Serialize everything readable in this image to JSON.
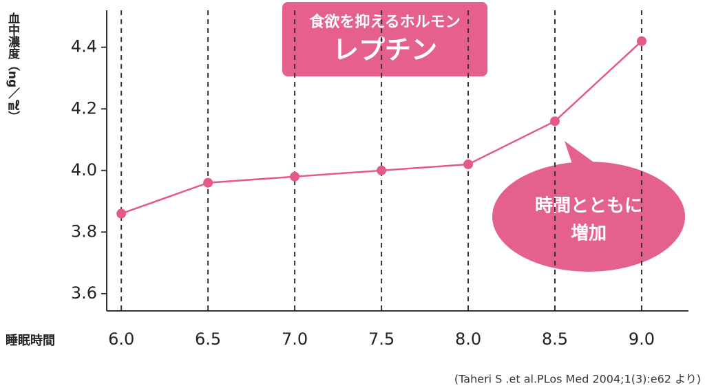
{
  "chart_data": {
    "type": "line",
    "subtitle": "食欲を抑えるホルモン",
    "title": "レプチン",
    "annotations": [
      "時間とともに",
      "増加"
    ],
    "ylabel": "血中濃度（ng／㎖）",
    "xlabel": "睡眠時間",
    "source": "(Taheri S .et al.PLos Med 2004;1(3):e62 より)",
    "x": [
      6,
      6.5,
      7,
      7.5,
      8,
      8.5,
      9
    ],
    "series": [
      {
        "name": "レプチン",
        "color": "#e35a85",
        "values": [
          3.86,
          3.96,
          3.98,
          4.0,
          4.02,
          4.16,
          4.42
        ]
      }
    ],
    "xlim": [
      5.916,
      9.27
    ],
    "xticks": [
      {
        "value": 6,
        "label": "6.0"
      },
      6.5,
      {
        "value": 7,
        "label": "7.0"
      },
      7.5,
      {
        "value": 8,
        "label": "8.0"
      },
      8.5,
      {
        "value": 9,
        "label": "9.0"
      }
    ],
    "ylim": [
      3.544,
      4.52
    ],
    "yticks": [
      3.6,
      3.8,
      {
        "value": 4,
        "label": "4.0"
      },
      4.2,
      4.4
    ],
    "grid": true
  }
}
